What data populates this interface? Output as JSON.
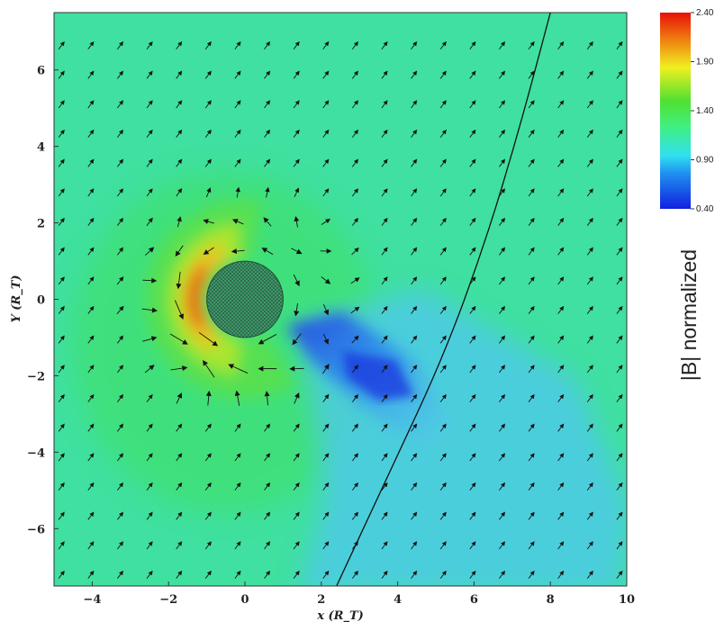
{
  "chart_data": {
    "type": "heatmap",
    "subtype": "vector field over scalar color map",
    "xlabel": "x (R_T)",
    "ylabel": "Y (R_T)",
    "xlim": [
      -5,
      10
    ],
    "ylim": [
      -7.5,
      7.5
    ],
    "xticks": [
      -4,
      -2,
      0,
      2,
      4,
      6,
      8,
      10
    ],
    "yticks": [
      -6,
      -4,
      -2,
      0,
      2,
      4,
      6
    ],
    "colorbar": {
      "label": "|B| normalized",
      "min": 0.4,
      "max": 2.4,
      "ticks": [
        "0.40",
        "0.90",
        "1.40",
        "1.90",
        "2.40"
      ]
    },
    "colors": {
      "ambient": "#3fe0a0",
      "wake_low": "#1a4fe0",
      "pileup_high": "#e81a0a",
      "body_fill": "#3a9a6a"
    },
    "body": {
      "label": "",
      "center": [
        0,
        0
      ],
      "radius": 1.0
    },
    "ambient_field": {
      "direction_deg": 53,
      "magnitude": 1.2
    },
    "curve": {
      "points": [
        [
          2.4,
          -7.5
        ],
        [
          3.8,
          -4.5
        ],
        [
          5.2,
          -1.5
        ],
        [
          6.3,
          1.5
        ],
        [
          7.2,
          4.5
        ],
        [
          8.0,
          7.5
        ]
      ]
    }
  }
}
